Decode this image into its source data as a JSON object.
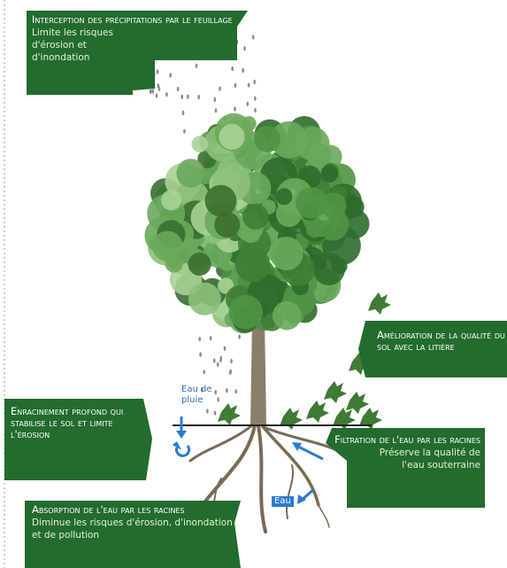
{
  "interception": {
    "title": "Interception des précipitations par le feuillage",
    "text": "Limite les risques d'érosion et d'inondation"
  },
  "litiere": {
    "title": "Amélioration de la qualité du sol avec la litière"
  },
  "enracinement": {
    "title": "Enracinement profond qui stabilise le sol et limite l'érosion"
  },
  "filtration": {
    "title": "Filtration de l'eau par les racines",
    "text": "Préserve la qualité de l'eau souterraine"
  },
  "absorption": {
    "title": "Absorption de l'eau par les racines",
    "text": "Diminue les risques d'érosion, d'inondation et de pollution"
  },
  "labels": {
    "rain": "Eau de pluie",
    "water": "Eau"
  }
}
